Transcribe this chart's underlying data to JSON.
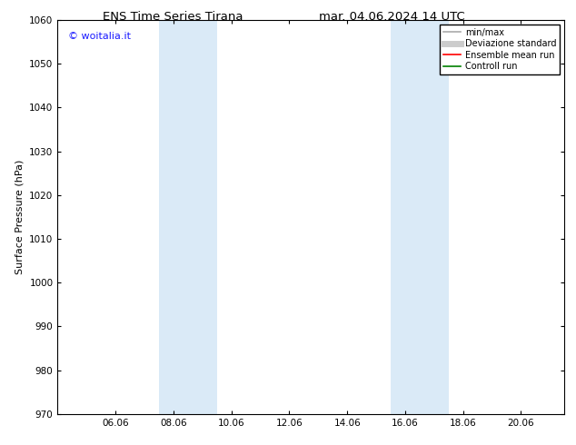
{
  "title_left": "ENS Time Series Tirana",
  "title_right": "mar. 04.06.2024 14 UTC",
  "ylabel": "Surface Pressure (hPa)",
  "ylim": [
    970,
    1060
  ],
  "yticks": [
    970,
    980,
    990,
    1000,
    1010,
    1020,
    1030,
    1040,
    1050,
    1060
  ],
  "x_tick_labels": [
    "06.06",
    "08.06",
    "10.06",
    "12.06",
    "14.06",
    "16.06",
    "18.06",
    "20.06"
  ],
  "x_tick_positions": [
    2,
    4,
    6,
    8,
    10,
    12,
    14,
    16
  ],
  "xlim": [
    0,
    17.5
  ],
  "shaded_bands": [
    {
      "x_start": 3.5,
      "x_end": 5.5
    },
    {
      "x_start": 11.5,
      "x_end": 13.5
    }
  ],
  "shaded_color": "#daeaf7",
  "watermark_text": "© woitalia.it",
  "watermark_color": "#1a1aff",
  "legend_entries": [
    {
      "label": "min/max",
      "color": "#aaaaaa",
      "lw": 1.2,
      "style": "solid"
    },
    {
      "label": "Deviazione standard",
      "color": "#cccccc",
      "lw": 5,
      "style": "solid"
    },
    {
      "label": "Ensemble mean run",
      "color": "#ff0000",
      "lw": 1.2,
      "style": "solid"
    },
    {
      "label": "Controll run",
      "color": "#008000",
      "lw": 1.2,
      "style": "solid"
    }
  ],
  "bg_color": "#ffffff",
  "spine_color": "#000000",
  "title_fontsize": 9.5,
  "tick_fontsize": 7.5,
  "ylabel_fontsize": 8,
  "watermark_fontsize": 8,
  "legend_fontsize": 7
}
